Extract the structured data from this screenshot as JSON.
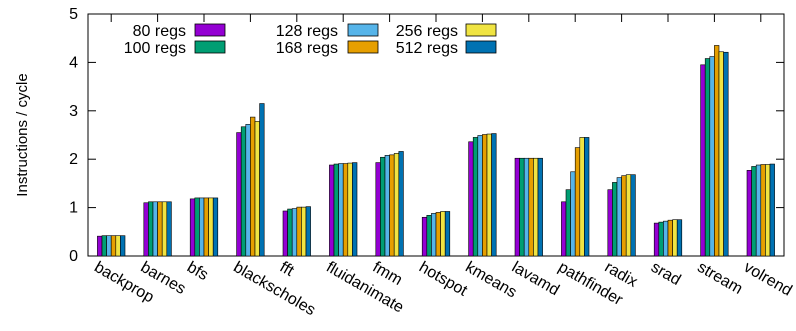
{
  "chart_data": {
    "type": "bar",
    "ylabel": "Instructions / cycle",
    "xlabel": "",
    "ylim": [
      0,
      5
    ],
    "yticks": [
      0,
      1,
      2,
      3,
      4,
      5
    ],
    "grid": false,
    "legend_position": "top-left",
    "categories": [
      "backprop",
      "barnes",
      "bfs",
      "blackscholes",
      "fft",
      "fluidanimate",
      "fmm",
      "hotspot",
      "kmeans",
      "lavamd",
      "pathfinder",
      "radix",
      "srad",
      "stream",
      "volrend"
    ],
    "series": [
      {
        "name": "80 regs",
        "color": "#9400d3",
        "values": [
          0.41,
          1.1,
          1.18,
          2.55,
          0.93,
          1.88,
          1.93,
          0.8,
          2.36,
          2.02,
          1.12,
          1.37,
          0.68,
          3.95,
          1.77
        ]
      },
      {
        "name": "100 regs",
        "color": "#009e73",
        "values": [
          0.42,
          1.12,
          1.2,
          2.67,
          0.97,
          1.9,
          2.04,
          0.84,
          2.45,
          2.02,
          1.37,
          1.52,
          0.7,
          4.08,
          1.85
        ]
      },
      {
        "name": "128 regs",
        "color": "#56b4e9",
        "values": [
          0.42,
          1.12,
          1.2,
          2.72,
          0.98,
          1.91,
          2.08,
          0.88,
          2.49,
          2.02,
          1.74,
          1.62,
          0.72,
          4.12,
          1.88
        ]
      },
      {
        "name": "168 regs",
        "color": "#e69f00",
        "values": [
          0.42,
          1.12,
          1.2,
          2.87,
          1.01,
          1.91,
          2.09,
          0.9,
          2.51,
          2.02,
          2.24,
          1.66,
          0.74,
          4.35,
          1.89
        ]
      },
      {
        "name": "256 regs",
        "color": "#f0e442",
        "values": [
          0.42,
          1.12,
          1.2,
          2.78,
          1.01,
          1.92,
          2.12,
          0.92,
          2.52,
          2.02,
          2.45,
          1.68,
          0.75,
          4.22,
          1.89
        ]
      },
      {
        "name": "512 regs",
        "color": "#0072b2",
        "values": [
          0.42,
          1.12,
          1.2,
          3.15,
          1.02,
          1.93,
          2.16,
          0.92,
          2.53,
          2.02,
          2.45,
          1.68,
          0.75,
          4.21,
          1.9
        ]
      }
    ]
  }
}
